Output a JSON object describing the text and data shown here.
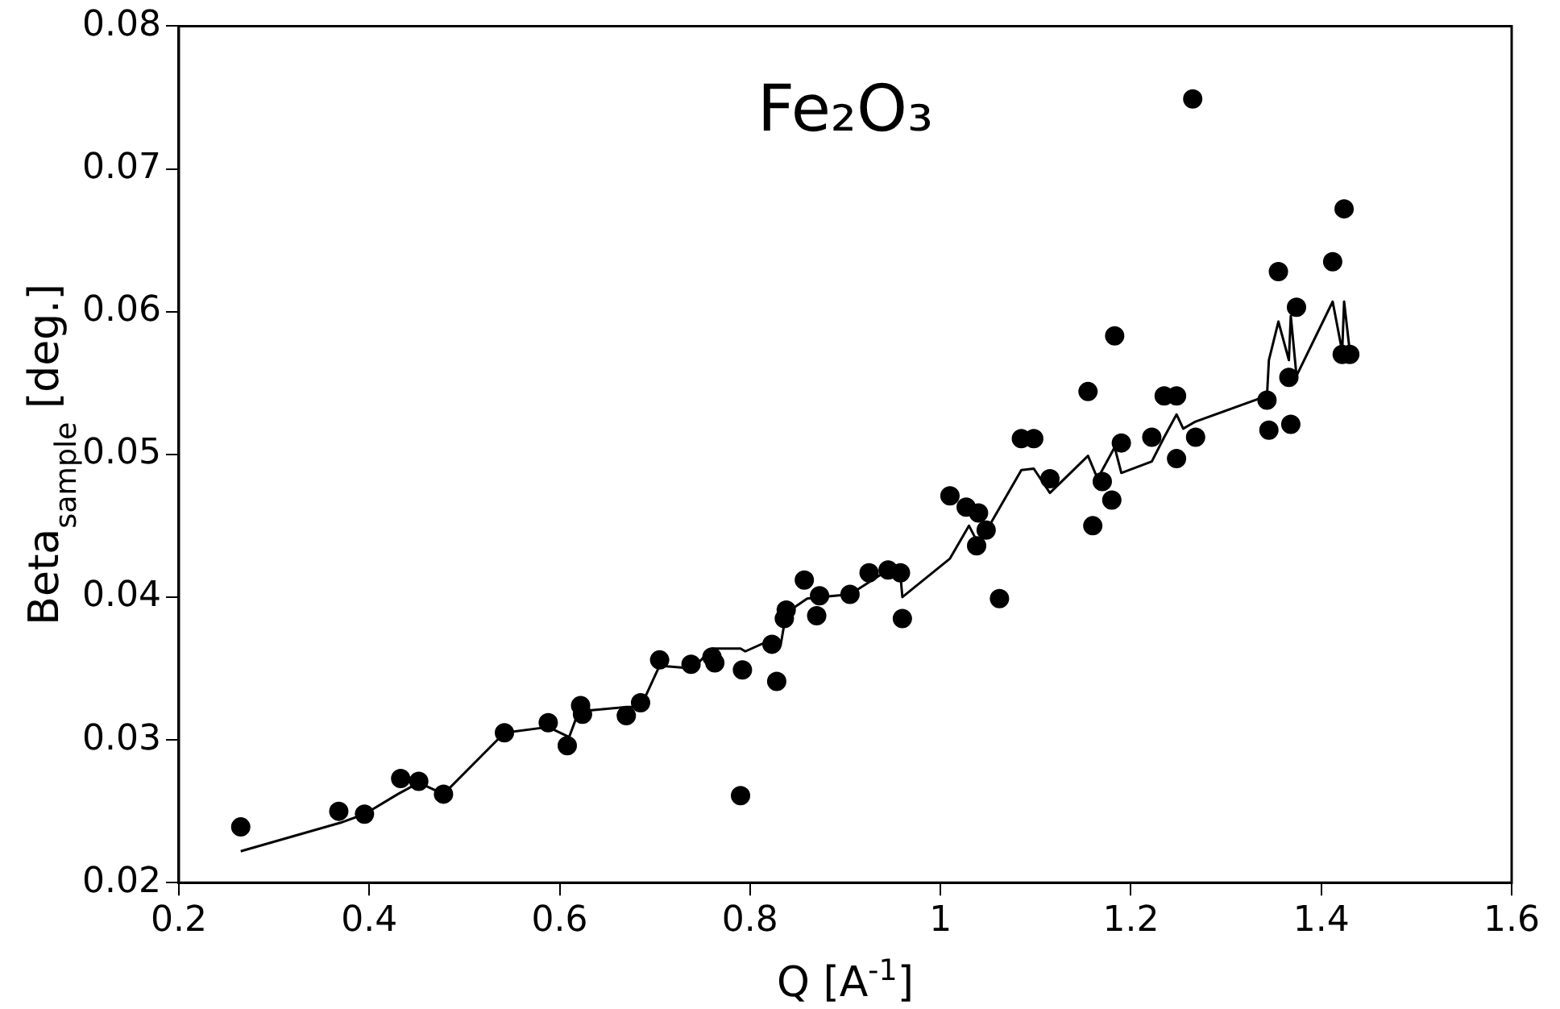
{
  "chart_data": {
    "type": "scatter",
    "title": "Fe₂O₃",
    "xlabel": "Q [A$^{-1}$]",
    "ylabel": "Beta$_{sample}$ [deg.]",
    "xlim": [
      0.2,
      1.6
    ],
    "xticks": [
      0.2,
      0.4,
      0.6,
      0.8,
      1,
      1.2,
      1.4,
      1.6
    ],
    "ylim": [
      0.02,
      0.08
    ],
    "yticks": [
      0.02,
      0.03,
      0.04,
      0.05,
      0.06,
      0.07,
      0.08
    ],
    "grid": false,
    "legend": false,
    "series": [
      {
        "color": "#000000",
        "marker": "circle",
        "x": [
          0.265,
          0.368,
          0.395,
          0.433,
          0.452,
          0.478,
          0.542,
          0.588,
          0.608,
          0.622,
          0.624,
          0.67,
          0.685,
          0.705,
          0.738,
          0.76,
          0.763,
          0.792,
          0.79,
          0.823,
          0.828,
          0.838,
          0.836,
          0.857,
          0.87,
          0.873,
          0.905,
          0.925,
          0.945,
          0.958,
          0.96,
          1.01,
          1.027,
          1.04,
          1.038,
          1.048,
          1.062,
          1.085,
          1.098,
          1.115,
          1.155,
          1.16,
          1.17,
          1.18,
          1.183,
          1.19,
          1.222,
          1.235,
          1.248,
          1.248,
          1.265,
          1.268,
          1.343,
          1.345,
          1.355,
          1.366,
          1.368,
          1.374,
          1.412,
          1.424,
          1.422,
          1.43
        ],
        "values": [
          0.0239,
          0.025,
          0.0248,
          0.0273,
          0.0271,
          0.0262,
          0.0305,
          0.0312,
          0.0296,
          0.0324,
          0.0318,
          0.0317,
          0.0326,
          0.0356,
          0.0353,
          0.0358,
          0.0354,
          0.0349,
          0.0261,
          0.0367,
          0.0341,
          0.0391,
          0.0385,
          0.0412,
          0.0387,
          0.0401,
          0.0402,
          0.0417,
          0.0419,
          0.0417,
          0.0385,
          0.0471,
          0.0463,
          0.0459,
          0.0436,
          0.0447,
          0.0399,
          0.0511,
          0.0511,
          0.0483,
          0.0544,
          0.045,
          0.0481,
          0.0468,
          0.0583,
          0.0508,
          0.0512,
          0.0541,
          0.0541,
          0.0497,
          0.0749,
          0.0512,
          0.0538,
          0.0517,
          0.0628,
          0.0554,
          0.0521,
          0.0603,
          0.0635,
          0.0672,
          0.057,
          0.057
        ]
      },
      {
        "type": "line",
        "color": "#000000",
        "marker": "none",
        "line_style": "solid",
        "x": [
          0.265,
          0.37,
          0.395,
          0.43,
          0.452,
          0.478,
          0.542,
          0.588,
          0.61,
          0.62,
          0.67,
          0.685,
          0.705,
          0.74,
          0.76,
          0.79,
          0.795,
          0.825,
          0.832,
          0.838,
          0.86,
          0.873,
          0.905,
          0.945,
          0.958,
          0.96,
          1.01,
          1.03,
          1.04,
          1.085,
          1.098,
          1.115,
          1.155,
          1.165,
          1.183,
          1.19,
          1.222,
          1.235,
          1.248,
          1.255,
          1.268,
          1.343,
          1.345,
          1.355,
          1.366,
          1.368,
          1.374,
          1.412,
          1.422,
          1.424,
          1.43
        ],
        "values": [
          0.0222,
          0.0242,
          0.0248,
          0.0262,
          0.027,
          0.0262,
          0.0305,
          0.0309,
          0.0302,
          0.032,
          0.0323,
          0.0323,
          0.0352,
          0.035,
          0.0364,
          0.0364,
          0.0362,
          0.0371,
          0.0366,
          0.0389,
          0.0399,
          0.04,
          0.0402,
          0.0419,
          0.0415,
          0.04,
          0.0427,
          0.045,
          0.0437,
          0.0489,
          0.049,
          0.0473,
          0.0499,
          0.0483,
          0.0505,
          0.0487,
          0.0495,
          0.0512,
          0.0528,
          0.0518,
          0.0523,
          0.0541,
          0.0566,
          0.0593,
          0.0566,
          0.0597,
          0.0555,
          0.0607,
          0.0572,
          0.0607,
          0.0572
        ]
      }
    ]
  }
}
